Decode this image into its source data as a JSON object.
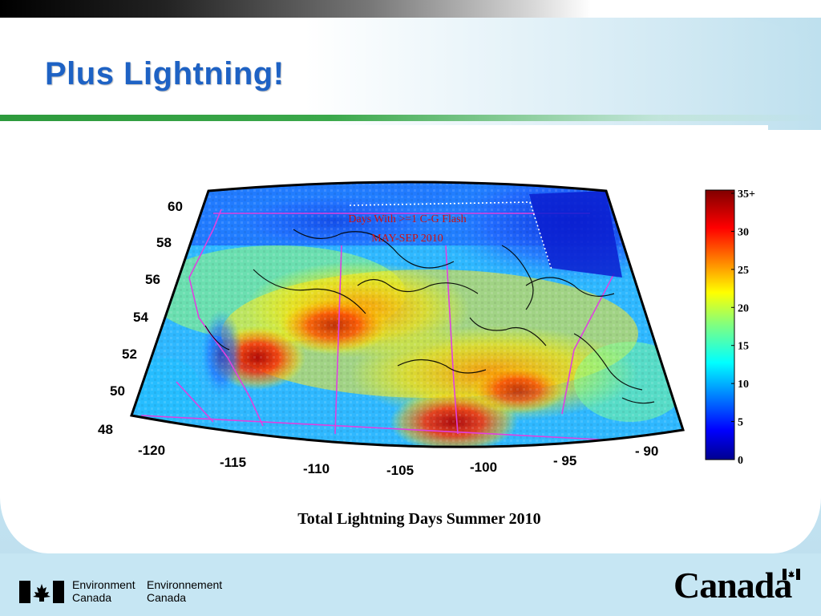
{
  "slide": {
    "title": "Plus Lightning!",
    "caption": "Total Lightning Days Summer 2010"
  },
  "footer": {
    "department_en_line1": "Environment",
    "department_en_line2": "Canada",
    "department_fr_line1": "Environnement",
    "department_fr_line2": "Canada",
    "wordmark": "Canada"
  },
  "map": {
    "inner_title_line1": "Days With >=1 C-G Flash",
    "inner_title_line2": "MAY-SEP 2010",
    "latitude_labels": [
      "60",
      "58",
      "56",
      "54",
      "52",
      "50",
      "48"
    ],
    "longitude_labels": [
      "-120",
      "-115",
      "-110",
      "-105",
      "-100",
      "- 95",
      "- 90"
    ]
  },
  "colorbar": {
    "tick_labels": [
      "35+",
      "30",
      "25",
      "20",
      "15",
      "10",
      "5",
      "0"
    ],
    "range": [
      0,
      35
    ]
  },
  "colors": {
    "title_blue": "#1e62c4",
    "accent_green": "#2d9a3c",
    "footer_blue": "#c6e6f3"
  }
}
